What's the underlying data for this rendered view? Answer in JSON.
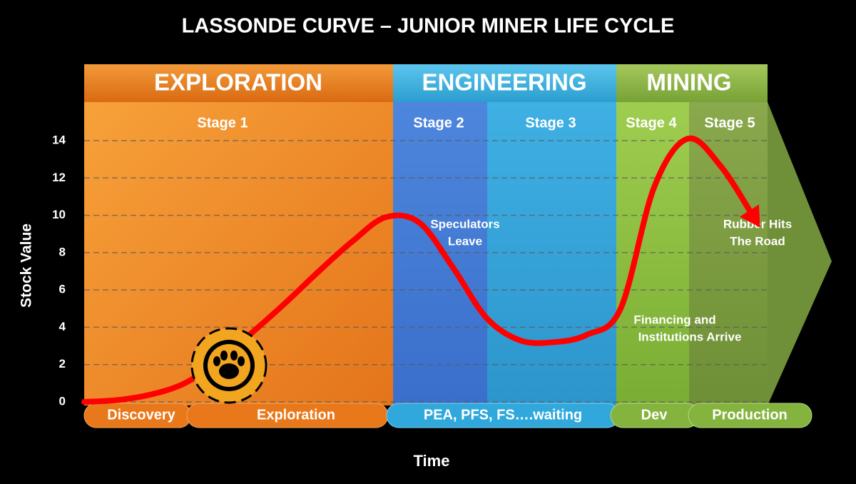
{
  "chart_data": {
    "type": "line",
    "title": "LASSONDE CURVE – JUNIOR MINER LIFE CYCLE",
    "ylabel": "Stock Value",
    "xlabel": "Time",
    "ylim": [
      0,
      14
    ],
    "yticks": [
      0,
      2,
      4,
      6,
      8,
      10,
      12,
      14
    ],
    "grid": true,
    "phases": [
      "EXPLORATION",
      "ENGINEERING",
      "MINING"
    ],
    "stages": [
      "Stage 1",
      "Stage 2",
      "Stage 3",
      "Stage 4",
      "Stage 5"
    ],
    "milestones": [
      "Discovery",
      "Exploration",
      "PEA, PFS, FS….waiting",
      "Dev",
      "Production"
    ],
    "annotations": [
      [
        "Speculators",
        "Leave"
      ],
      [
        "Financing and",
        "Institutions Arrive"
      ],
      [
        "Rubber Hits",
        "The Road"
      ]
    ],
    "categories": [
      null,
      null,
      null,
      null,
      null,
      null,
      null,
      null,
      null,
      null,
      null,
      null,
      null,
      null,
      null,
      null,
      null,
      null,
      null,
      null,
      null
    ],
    "series": [
      {
        "color": "#ff0000",
        "values": [
          0,
          0.1,
          0.4,
          1.0,
          2.2,
          3.7,
          5.3,
          7.0,
          8.6,
          9.9,
          9.6,
          7.2,
          4.5,
          3.3,
          3.2,
          3.6,
          5.0,
          11.5,
          14.1,
          12.6,
          9.8
        ]
      }
    ]
  }
}
